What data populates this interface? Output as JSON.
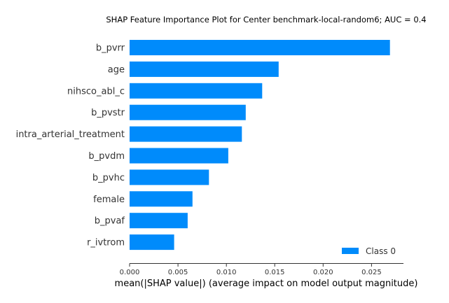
{
  "chart_data": {
    "type": "bar",
    "orientation": "horizontal",
    "title": "SHAP Feature Importance Plot for Center benchmark-local-random6; AUC = 0.4",
    "xlabel": "mean(|SHAP value|) (average impact on model output magnitude)",
    "ylabel": "",
    "categories": [
      "b_pvrr",
      "age",
      "nihsco_abl_c",
      "b_pvstr",
      "intra_arterial_treatment",
      "b_pvdm",
      "b_pvhc",
      "female",
      "b_pvaf",
      "r_ivtrom"
    ],
    "series": [
      {
        "name": "Class 0",
        "values": [
          0.0269,
          0.0154,
          0.0137,
          0.012,
          0.0116,
          0.0102,
          0.0082,
          0.0065,
          0.006,
          0.0046
        ],
        "color": "#008bfb"
      }
    ],
    "xlim": [
      0,
      0.0283
    ],
    "xticks": [
      0.0,
      0.005,
      0.01,
      0.015,
      0.02,
      0.025
    ],
    "xtick_labels": [
      "0.000",
      "0.005",
      "0.010",
      "0.015",
      "0.020",
      "0.025"
    ],
    "grid": false,
    "legend_position": "bottom-right"
  }
}
